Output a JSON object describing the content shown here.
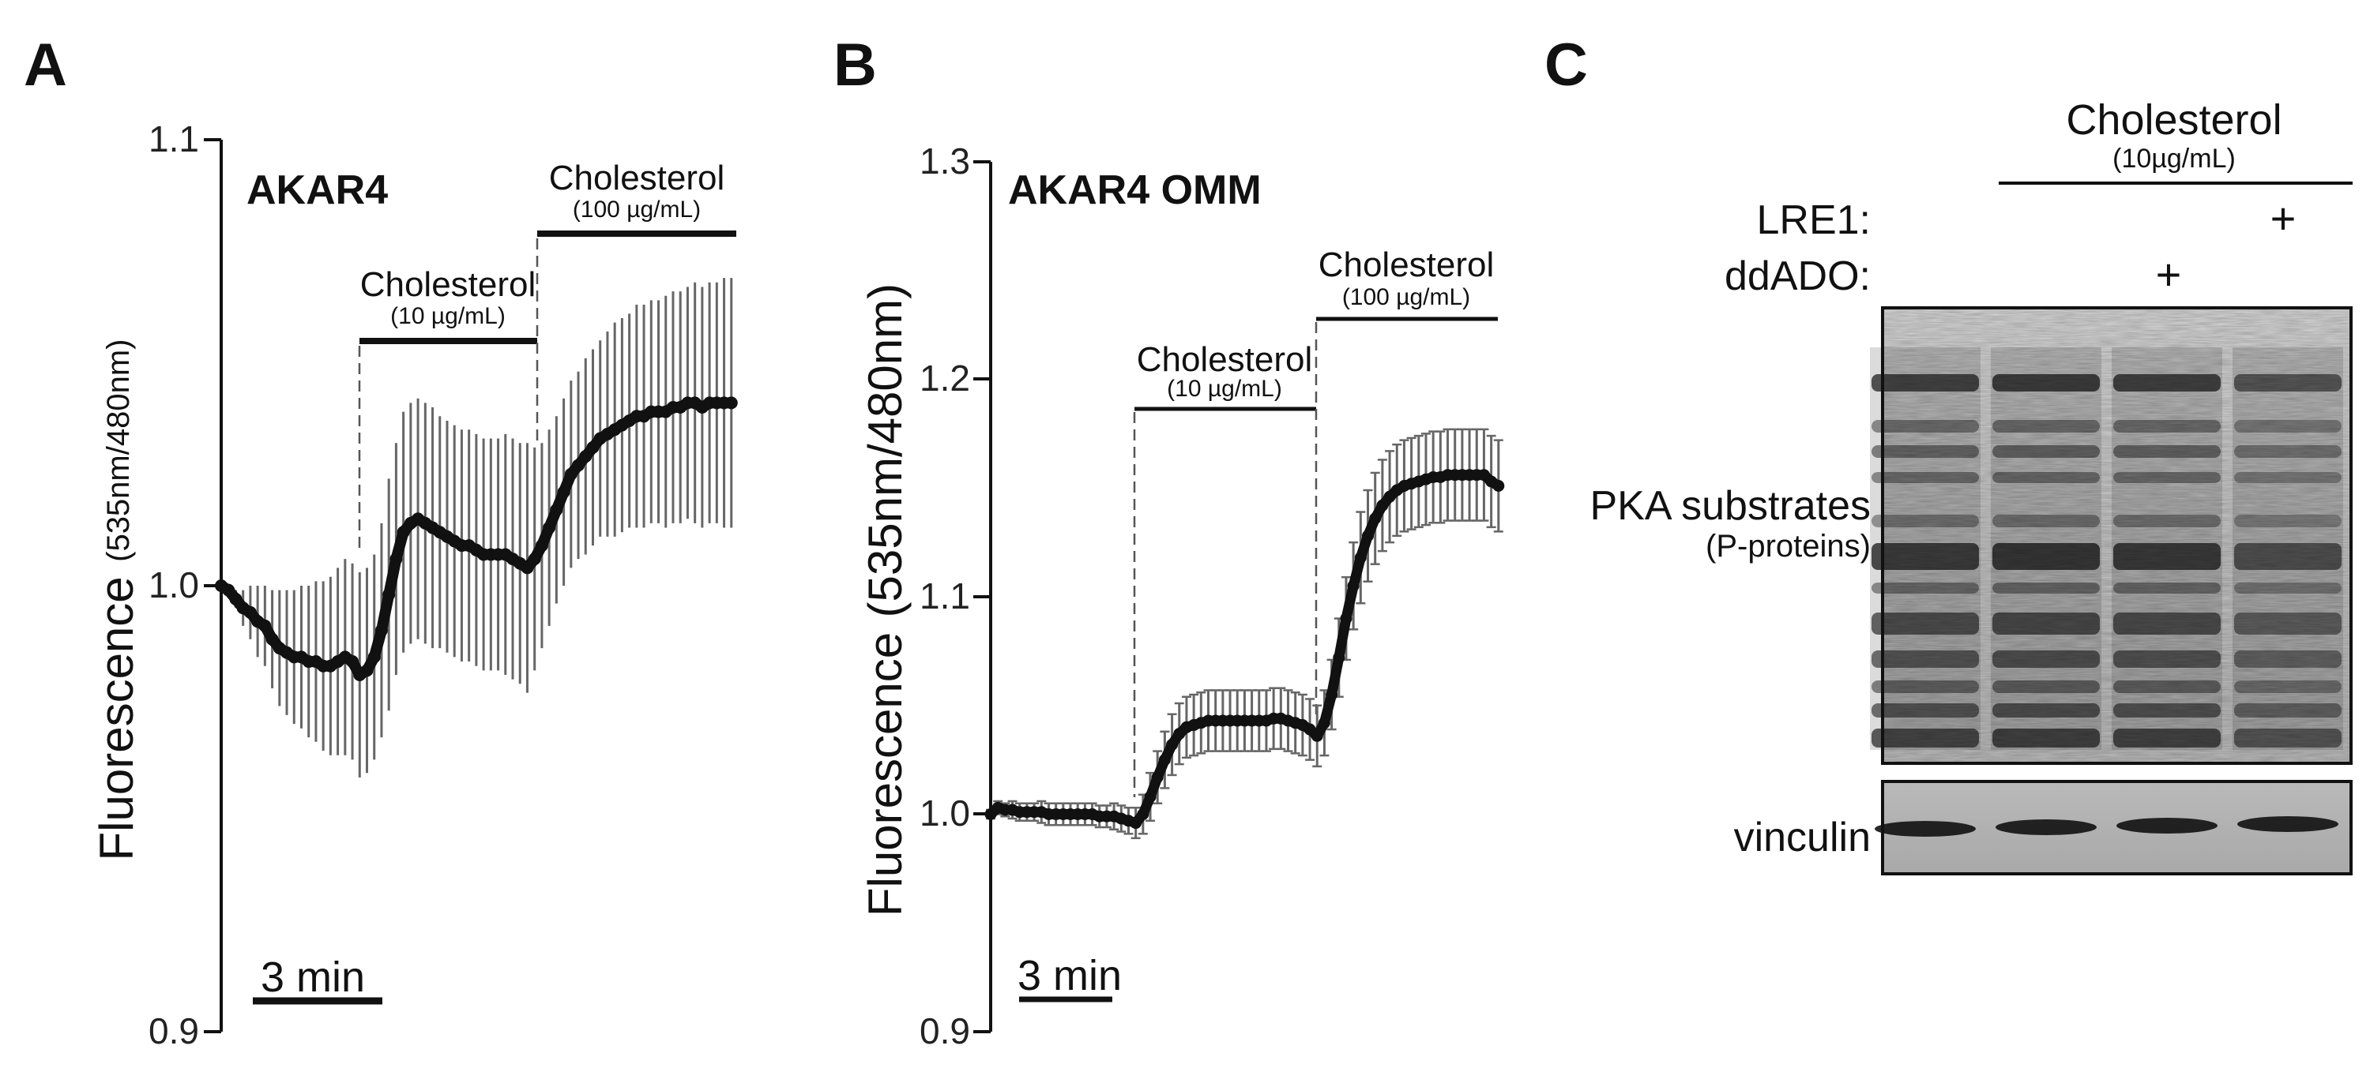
{
  "panels": {
    "A": {
      "letter": "A",
      "title": "AKAR4",
      "ylabel_main": "Fluorescence",
      "ylabel_unit": "(535nm/480nm)",
      "scale_bar": "3 min",
      "treatment1": {
        "label": "Cholesterol",
        "conc": "(10 µg/mL)"
      },
      "treatment2": {
        "label": "Cholesterol",
        "conc": "(100 µg/mL)"
      }
    },
    "B": {
      "letter": "B",
      "title": "AKAR4 OMM",
      "ylabel_main": "Fluorescence",
      "ylabel_unit": "(535nm/480nm)",
      "scale_bar": "3 min",
      "treatment1": {
        "label": "Cholesterol",
        "conc": "(10 µg/mL)"
      },
      "treatment2": {
        "label": "Cholesterol",
        "conc": "(100 µg/mL)"
      }
    },
    "C": {
      "letter": "C",
      "header": "Cholesterol",
      "header_conc": "(10µg/mL)",
      "row1_label": "LRE1:",
      "row2_label": "ddADO:",
      "row1_marks": [
        "",
        "",
        "",
        "+"
      ],
      "row2_marks": [
        "",
        "",
        "+",
        ""
      ],
      "blot1_label": "PKA substrates",
      "blot1_sub": "(P-proteins)",
      "blot2_label": "vinculin"
    }
  },
  "chart_data": [
    {
      "type": "line",
      "panel": "A",
      "title": "AKAR4",
      "ylabel": "Fluorescence (535nm/480nm)",
      "xlabel": "",
      "ylim": [
        0.9,
        1.1
      ],
      "yticks": [
        "0.9",
        "1.0",
        "1.1"
      ],
      "xlim": [
        0,
        71
      ],
      "treatment_starts": [
        18,
        42
      ],
      "series": [
        {
          "name": "AKAR4",
          "x": [
            0,
            1,
            2,
            3,
            4,
            5,
            6,
            7,
            8,
            9,
            10,
            11,
            12,
            13,
            14,
            15,
            16,
            17,
            18,
            19,
            20,
            21,
            22,
            23,
            24,
            25,
            26,
            27,
            28,
            29,
            30,
            31,
            32,
            33,
            34,
            35,
            36,
            37,
            38,
            39,
            40,
            41,
            42,
            43,
            44,
            45,
            46,
            47,
            48,
            49,
            50,
            51,
            52,
            53,
            54,
            55,
            56,
            57,
            58,
            59,
            60,
            61,
            62,
            63,
            64,
            65,
            66,
            67,
            68,
            69,
            70
          ],
          "values": [
            1.0,
            0.999,
            0.997,
            0.995,
            0.994,
            0.992,
            0.991,
            0.988,
            0.986,
            0.985,
            0.984,
            0.984,
            0.983,
            0.983,
            0.982,
            0.982,
            0.983,
            0.984,
            0.983,
            0.98,
            0.981,
            0.984,
            0.99,
            0.998,
            1.006,
            1.012,
            1.014,
            1.015,
            1.014,
            1.013,
            1.012,
            1.011,
            1.01,
            1.009,
            1.009,
            1.008,
            1.007,
            1.007,
            1.007,
            1.007,
            1.006,
            1.005,
            1.004,
            1.006,
            1.009,
            1.013,
            1.017,
            1.021,
            1.025,
            1.027,
            1.029,
            1.031,
            1.033,
            1.034,
            1.035,
            1.036,
            1.037,
            1.038,
            1.038,
            1.039,
            1.039,
            1.039,
            1.04,
            1.04,
            1.041,
            1.041,
            1.04,
            1.041,
            1.041,
            1.041,
            1.041
          ],
          "error": [
            0.001,
            0.001,
            0.002,
            0.004,
            0.006,
            0.008,
            0.009,
            0.011,
            0.013,
            0.014,
            0.015,
            0.016,
            0.017,
            0.018,
            0.019,
            0.02,
            0.021,
            0.022,
            0.022,
            0.023,
            0.023,
            0.023,
            0.024,
            0.026,
            0.026,
            0.027,
            0.027,
            0.027,
            0.027,
            0.027,
            0.026,
            0.026,
            0.026,
            0.026,
            0.026,
            0.026,
            0.026,
            0.026,
            0.026,
            0.027,
            0.027,
            0.027,
            0.028,
            0.025,
            0.023,
            0.022,
            0.021,
            0.021,
            0.021,
            0.021,
            0.022,
            0.022,
            0.022,
            0.023,
            0.024,
            0.024,
            0.024,
            0.025,
            0.025,
            0.025,
            0.025,
            0.026,
            0.026,
            0.026,
            0.026,
            0.027,
            0.027,
            0.027,
            0.027,
            0.028,
            0.028
          ]
        }
      ]
    },
    {
      "type": "line",
      "panel": "B",
      "title": "AKAR4 OMM",
      "ylabel": "Fluorescence (535nm/480nm)",
      "xlabel": "",
      "ylim": [
        0.9,
        1.3
      ],
      "yticks": [
        "0.9",
        "1.0",
        "1.1",
        "1.2",
        "1.3"
      ],
      "xlim": [
        0,
        71
      ],
      "treatment_starts": [
        20,
        45
      ],
      "series": [
        {
          "name": "AKAR4 OMM",
          "x": [
            0,
            1,
            2,
            3,
            4,
            5,
            6,
            7,
            8,
            9,
            10,
            11,
            12,
            13,
            14,
            15,
            16,
            17,
            18,
            19,
            20,
            21,
            22,
            23,
            24,
            25,
            26,
            27,
            28,
            29,
            30,
            31,
            32,
            33,
            34,
            35,
            36,
            37,
            38,
            39,
            40,
            41,
            42,
            43,
            44,
            45,
            46,
            47,
            48,
            49,
            50,
            51,
            52,
            53,
            54,
            55,
            56,
            57,
            58,
            59,
            60,
            61,
            62,
            63,
            64,
            65,
            66,
            67,
            68,
            69,
            70
          ],
          "values": [
            1.0,
            1.003,
            1.002,
            1.002,
            1.001,
            1.001,
            1.001,
            1.001,
            1.0,
            1.0,
            1.0,
            1.0,
            1.0,
            1.0,
            1.0,
            0.999,
            0.999,
            0.999,
            0.998,
            0.997,
            0.996,
            1.0,
            1.008,
            1.017,
            1.025,
            1.032,
            1.037,
            1.04,
            1.041,
            1.042,
            1.043,
            1.043,
            1.043,
            1.043,
            1.043,
            1.043,
            1.043,
            1.043,
            1.043,
            1.044,
            1.044,
            1.043,
            1.042,
            1.041,
            1.039,
            1.036,
            1.042,
            1.055,
            1.072,
            1.09,
            1.105,
            1.118,
            1.128,
            1.136,
            1.142,
            1.146,
            1.149,
            1.151,
            1.152,
            1.153,
            1.154,
            1.155,
            1.155,
            1.156,
            1.156,
            1.156,
            1.156,
            1.156,
            1.156,
            1.153,
            1.151
          ],
          "error": [
            0.002,
            0.003,
            0.003,
            0.004,
            0.004,
            0.004,
            0.004,
            0.005,
            0.005,
            0.005,
            0.005,
            0.005,
            0.005,
            0.005,
            0.005,
            0.005,
            0.005,
            0.006,
            0.006,
            0.006,
            0.007,
            0.009,
            0.011,
            0.012,
            0.013,
            0.014,
            0.014,
            0.014,
            0.014,
            0.014,
            0.014,
            0.014,
            0.014,
            0.014,
            0.014,
            0.014,
            0.014,
            0.014,
            0.014,
            0.014,
            0.014,
            0.014,
            0.014,
            0.014,
            0.014,
            0.014,
            0.015,
            0.016,
            0.018,
            0.019,
            0.02,
            0.021,
            0.021,
            0.021,
            0.021,
            0.021,
            0.021,
            0.021,
            0.021,
            0.021,
            0.021,
            0.021,
            0.021,
            0.021,
            0.021,
            0.021,
            0.021,
            0.021,
            0.021,
            0.021,
            0.021
          ]
        }
      ]
    }
  ]
}
